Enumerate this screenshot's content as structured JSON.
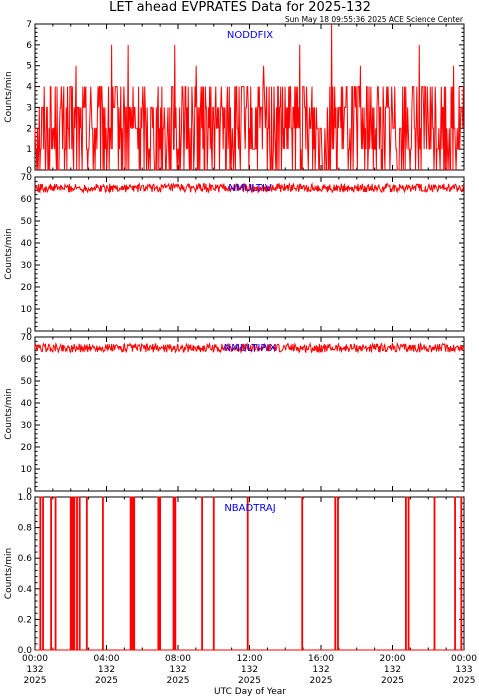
{
  "header": {
    "title": "LET ahead EVPRATES Data for 2025-132",
    "timestamp": "Sun May 18 09:55:36 2025 ACE Science Center"
  },
  "xaxis": {
    "label": "UTC Day of Year",
    "ticks": [
      {
        "time": "00:00",
        "doy": "132",
        "year": "2025"
      },
      {
        "time": "04:00",
        "doy": "132",
        "year": "2025"
      },
      {
        "time": "08:00",
        "doy": "132",
        "year": "2025"
      },
      {
        "time": "12:00",
        "doy": "132",
        "year": "2025"
      },
      {
        "time": "16:00",
        "doy": "132",
        "year": "2025"
      },
      {
        "time": "20:00",
        "doy": "132",
        "year": "2025"
      },
      {
        "time": "00:00",
        "doy": "133",
        "year": "2025"
      }
    ]
  },
  "colors": {
    "series": "#ff0000",
    "label": "#0000ff",
    "axis": "#000000"
  },
  "chart_data": [
    {
      "type": "line",
      "series": [
        {
          "name": "NODDFIX",
          "description": "noisy counts fluctuating mostly between 0 and 4, occasional spikes to 5-7"
        }
      ],
      "x_range_hours": [
        0,
        24
      ],
      "ylabel": "Counts/min",
      "ylim": [
        0,
        7
      ],
      "yticks": [
        0,
        1,
        2,
        3,
        4,
        5,
        6,
        7
      ],
      "base_levels": [
        0,
        1,
        2,
        3,
        4
      ],
      "spikes": [
        [
          2.3,
          5
        ],
        [
          4.3,
          6
        ],
        [
          5.2,
          6
        ],
        [
          7.8,
          6
        ],
        [
          9.0,
          5
        ],
        [
          12.8,
          5
        ],
        [
          14.8,
          6
        ],
        [
          16.6,
          7
        ],
        [
          18.2,
          5
        ],
        [
          21.5,
          6
        ],
        [
          23.4,
          5
        ]
      ]
    },
    {
      "type": "line",
      "series": [
        {
          "name": "NMULTIV"
        }
      ],
      "x_range_hours": [
        0,
        24
      ],
      "ylabel": "Counts/min",
      "ylim": [
        0,
        70
      ],
      "yticks": [
        0,
        10,
        20,
        30,
        40,
        50,
        60,
        70
      ],
      "mean": 65,
      "spread": 2
    },
    {
      "type": "line",
      "series": [
        {
          "name": "NMULTIPIX"
        }
      ],
      "x_range_hours": [
        0,
        24
      ],
      "ylabel": "Counts/min",
      "ylim": [
        0,
        70
      ],
      "yticks": [
        0,
        10,
        20,
        30,
        40,
        50,
        60,
        70
      ],
      "mean": 65,
      "spread": 2
    },
    {
      "type": "line",
      "series": [
        {
          "name": "NBADTRAJ"
        }
      ],
      "x_range_hours": [
        0,
        24
      ],
      "ylabel": "Counts/min",
      "ylim": [
        0,
        1
      ],
      "yticks": [
        "0.0",
        "0.2",
        "0.4",
        "0.6",
        "0.8",
        "1.0"
      ],
      "events_hours": [
        0.3,
        0.45,
        0.9,
        1.15,
        2.0,
        2.1,
        2.2,
        2.35,
        2.5,
        2.9,
        3.8,
        5.35,
        5.45,
        5.55,
        6.9,
        7.0,
        7.75,
        7.85,
        9.35,
        10.0,
        11.9,
        14.95,
        16.8,
        16.95,
        20.75,
        20.9,
        22.35,
        23.5,
        23.85
      ]
    }
  ]
}
